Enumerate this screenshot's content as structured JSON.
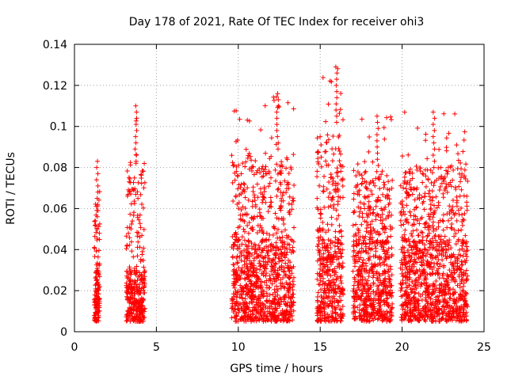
{
  "chart_data": {
    "type": "scatter",
    "title": "Day 178 of 2021, Rate Of TEC Index for receiver ohi3",
    "xlabel": "GPS time / hours",
    "ylabel": "ROTI / TECUs",
    "xlim": [
      0,
      25
    ],
    "ylim": [
      0,
      0.14
    ],
    "xticks": [
      "0",
      "5",
      "10",
      "15",
      "20",
      "25"
    ],
    "yticks": [
      "0",
      "0.02",
      "0.04",
      "0.06",
      "0.08",
      "0.1",
      "0.12",
      "0.14"
    ],
    "grid": true,
    "marker": "plus",
    "color": "#ff0000",
    "clusters": [
      {
        "x_range": [
          1.2,
          1.55
        ],
        "typical_y": [
          0.005,
          0.03
        ],
        "peak_y": 0.083
      },
      {
        "x_range": [
          3.15,
          4.3
        ],
        "typical_y": [
          0.005,
          0.03
        ],
        "peak_y": 0.11
      },
      {
        "x_range": [
          9.6,
          13.4
        ],
        "typical_y": [
          0.005,
          0.045
        ],
        "peak_y": 0.116
      },
      {
        "x_range": [
          14.8,
          16.4
        ],
        "typical_y": [
          0.005,
          0.045
        ],
        "peak_y": 0.129
      },
      {
        "x_range": [
          17.0,
          19.4
        ],
        "typical_y": [
          0.005,
          0.045
        ],
        "peak_y": 0.105
      },
      {
        "x_range": [
          19.9,
          24.0
        ],
        "typical_y": [
          0.005,
          0.045
        ],
        "peak_y": 0.107
      }
    ]
  }
}
